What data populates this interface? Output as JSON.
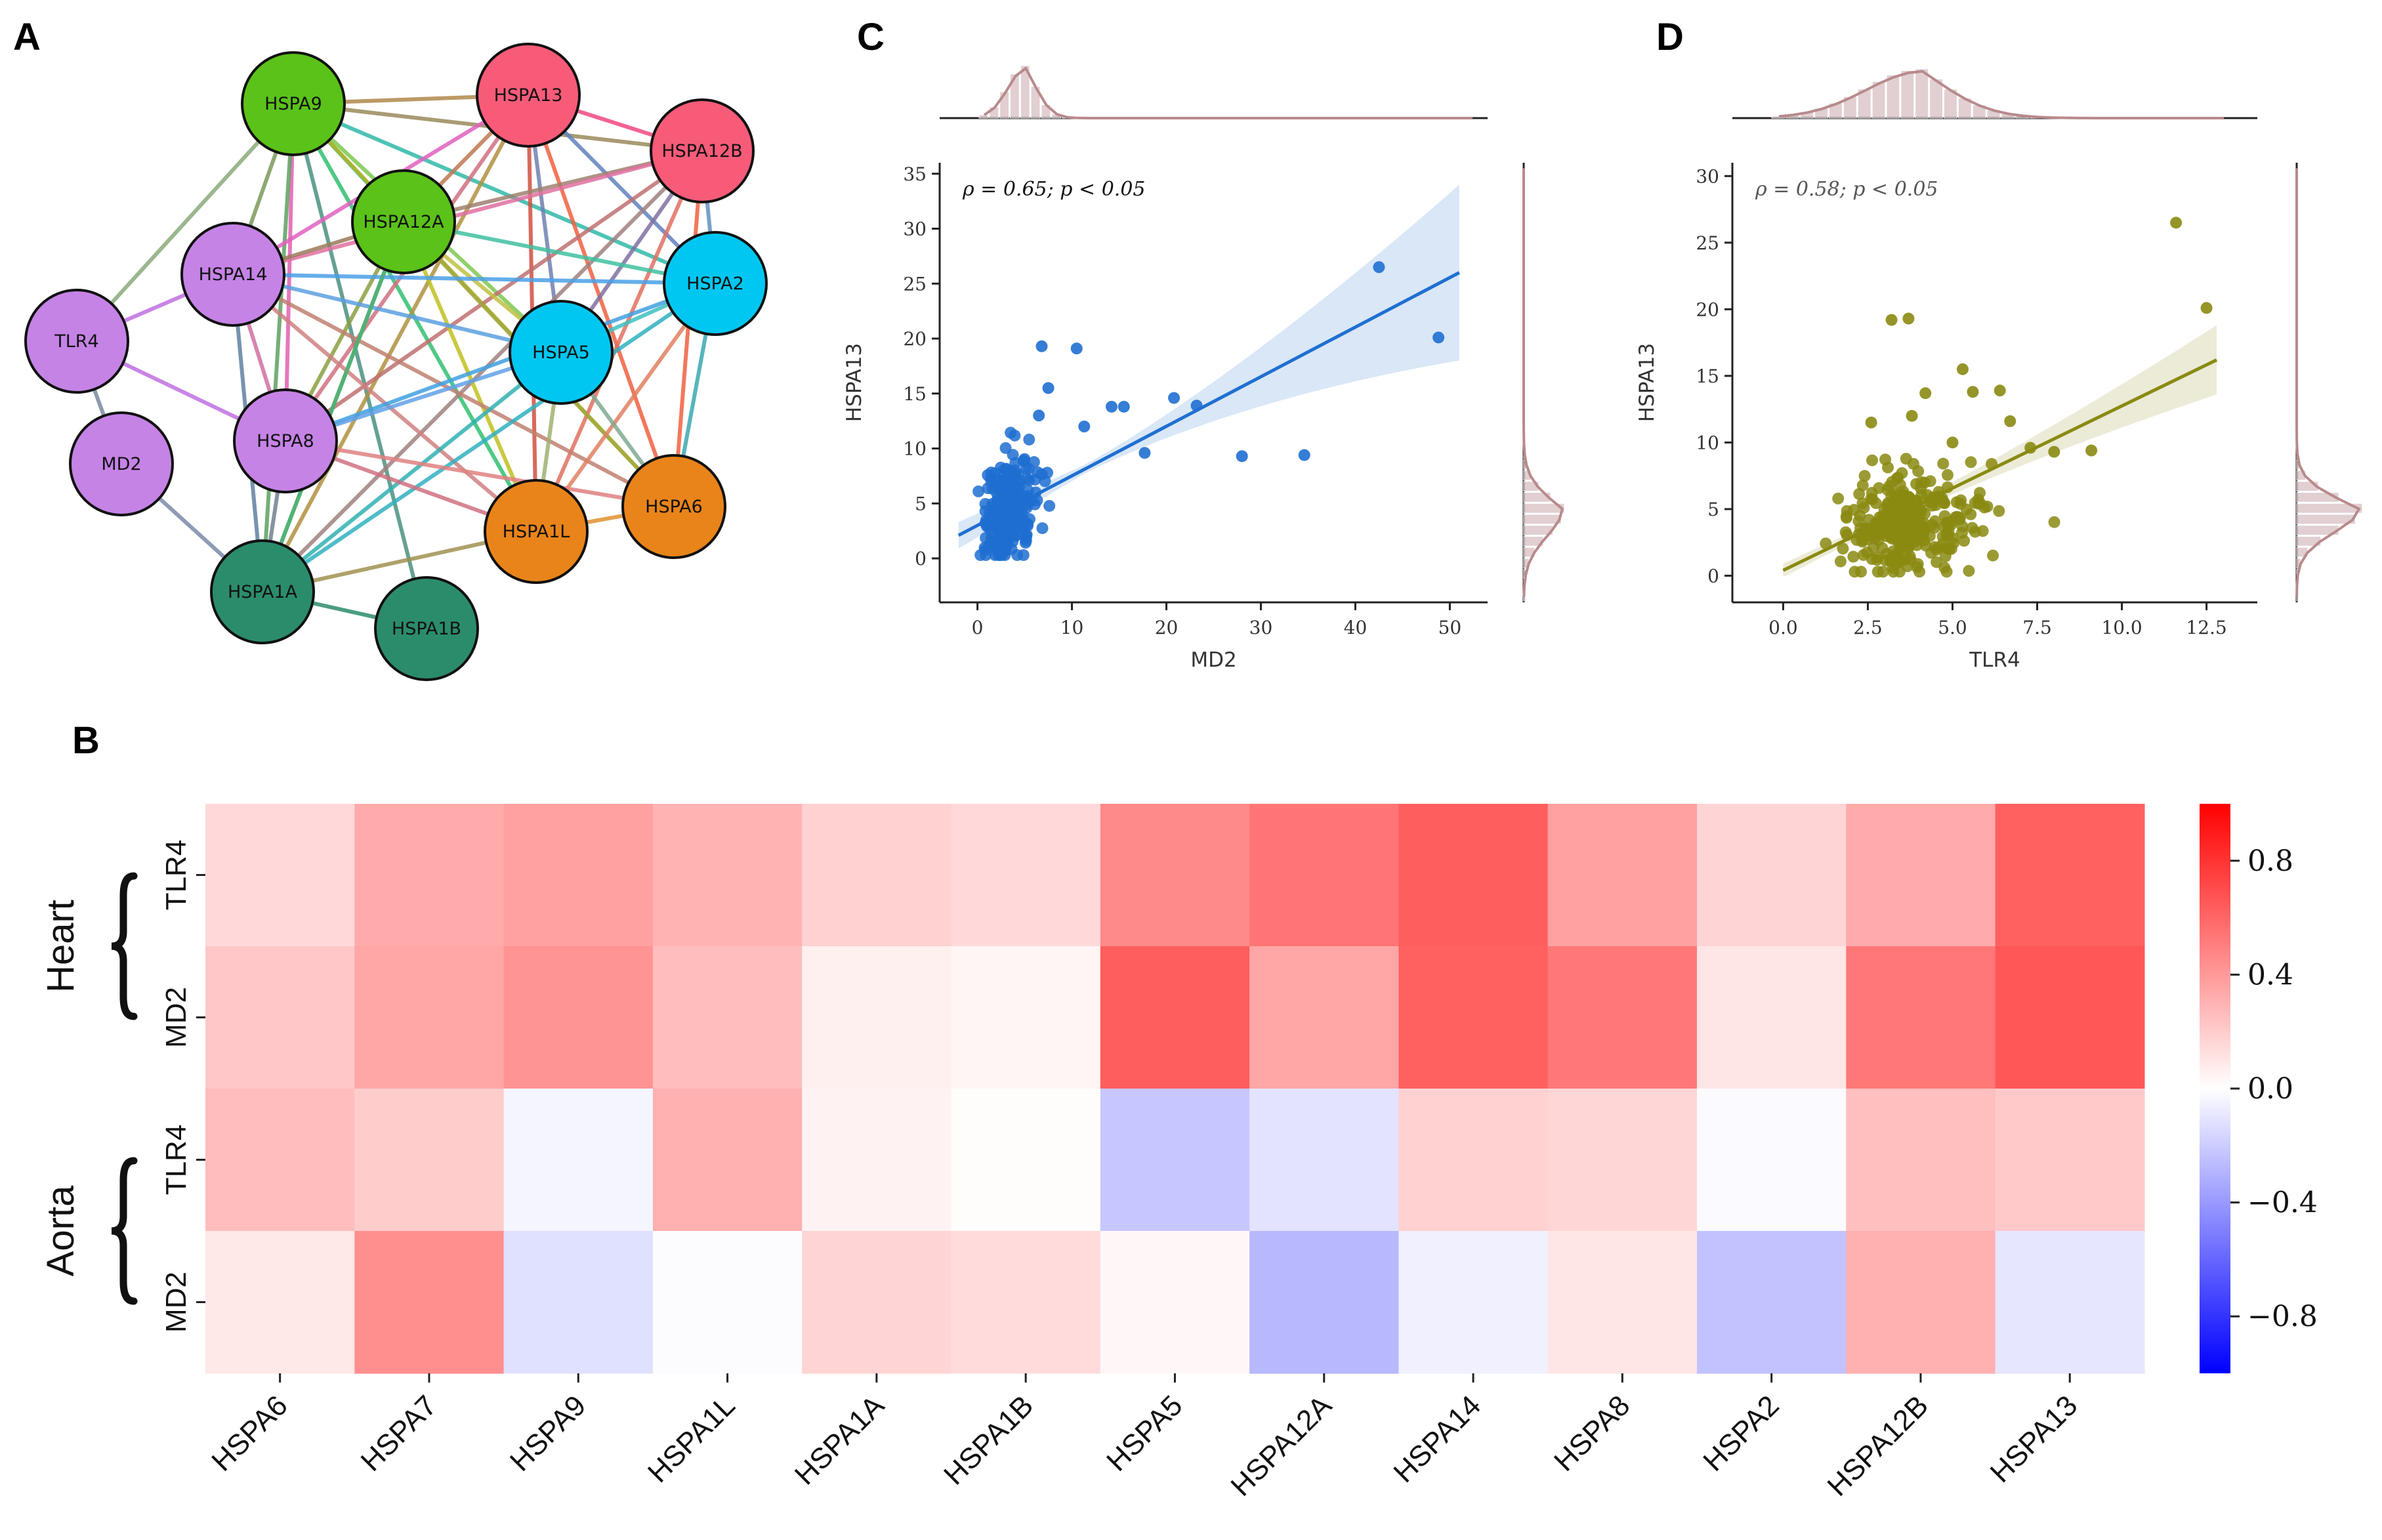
{
  "panels": {
    "a": "A",
    "b": "B",
    "c": "C",
    "d": "D"
  },
  "chart_data": [
    {
      "type": "network",
      "panel": "A",
      "nodes": [
        {
          "id": "HSPA9",
          "label": "HSPA9",
          "color": "#5bc219"
        },
        {
          "id": "HSPA13",
          "label": "HSPA13",
          "color": "#f75b78"
        },
        {
          "id": "HSPA12B",
          "label": "HSPA12B",
          "color": "#f75b78"
        },
        {
          "id": "HSPA12A",
          "label": "HSPA12A",
          "color": "#5bc219"
        },
        {
          "id": "HSPA14",
          "label": "HSPA14",
          "color": "#c583e6"
        },
        {
          "id": "HSPA2",
          "label": "HSPA2",
          "color": "#00c7f2"
        },
        {
          "id": "TLR4",
          "label": "TLR4",
          "color": "#c583e6"
        },
        {
          "id": "HSPA5",
          "label": "HSPA5",
          "color": "#00c7f2"
        },
        {
          "id": "MD2",
          "label": "MD2",
          "color": "#c583e6"
        },
        {
          "id": "HSPA8",
          "label": "HSPA8",
          "color": "#c583e6"
        },
        {
          "id": "HSPA6",
          "label": "HSPA6",
          "color": "#e9841a"
        },
        {
          "id": "HSPA1L",
          "label": "HSPA1L",
          "color": "#e9841a"
        },
        {
          "id": "HSPA1A",
          "label": "HSPA1A",
          "color": "#2b8c6c"
        },
        {
          "id": "HSPA1B",
          "label": "HSPA1B",
          "color": "#2b8c6c"
        }
      ],
      "edges": [
        [
          "HSPA9",
          "HSPA13",
          "#b0884a"
        ],
        [
          "HSPA9",
          "HSPA12B",
          "#9a8a5a"
        ],
        [
          "HSPA9",
          "HSPA12A",
          "#2ec49a"
        ],
        [
          "HSPA9",
          "HSPA2",
          "#2fb8a8"
        ],
        [
          "HSPA9",
          "HSPA5",
          "#7ec850"
        ],
        [
          "HSPA9",
          "HSPA8",
          "#e060b0"
        ],
        [
          "HSPA9",
          "HSPA6",
          "#b4b020"
        ],
        [
          "HSPA9",
          "HSPA1L",
          "#30c070"
        ],
        [
          "HSPA9",
          "HSPA1A",
          "#5ea060"
        ],
        [
          "HSPA9",
          "HSPA14",
          "#7a9a5a"
        ],
        [
          "HSPA9",
          "TLR4",
          "#8aaa7a"
        ],
        [
          "HSPA9",
          "HSPA1B",
          "#4a9080"
        ],
        [
          "HSPA13",
          "HSPA12B",
          "#f04880"
        ],
        [
          "HSPA13",
          "HSPA12A",
          "#c07850"
        ],
        [
          "HSPA13",
          "HSPA14",
          "#e060c0"
        ],
        [
          "HSPA13",
          "HSPA2",
          "#6080c0"
        ],
        [
          "HSPA13",
          "HSPA5",
          "#7080b0"
        ],
        [
          "HSPA13",
          "HSPA8",
          "#d07080"
        ],
        [
          "HSPA13",
          "HSPA6",
          "#f06040"
        ],
        [
          "HSPA13",
          "HSPA1L",
          "#d05040"
        ],
        [
          "HSPA13",
          "HSPA1A",
          "#b09040"
        ],
        [
          "HSPA12B",
          "HSPA12A",
          "#a08070"
        ],
        [
          "HSPA12B",
          "HSPA14",
          "#e070a0"
        ],
        [
          "HSPA12B",
          "HSPA2",
          "#6090c0"
        ],
        [
          "HSPA12B",
          "HSPA5",
          "#8070a0"
        ],
        [
          "HSPA12B",
          "HSPA8",
          "#c07070"
        ],
        [
          "HSPA12B",
          "HSPA6",
          "#f06040"
        ],
        [
          "HSPA12B",
          "HSPA1L",
          "#e07060"
        ],
        [
          "HSPA12B",
          "HSPA1A",
          "#a08080"
        ],
        [
          "HSPA12A",
          "HSPA14",
          "#9a7a5a"
        ],
        [
          "HSPA12A",
          "HSPA2",
          "#40c0a0"
        ],
        [
          "HSPA12A",
          "HSPA5",
          "#c0c040"
        ],
        [
          "HSPA12A",
          "HSPA8",
          "#8aa040"
        ],
        [
          "HSPA12A",
          "HSPA6",
          "#a0a840"
        ],
        [
          "HSPA12A",
          "HSPA1L",
          "#c0c020"
        ],
        [
          "HSPA12A",
          "HSPA1A",
          "#40b080"
        ],
        [
          "HSPA14",
          "HSPA2",
          "#4aa0e8"
        ],
        [
          "HSPA14",
          "HSPA5",
          "#5aa0e0"
        ],
        [
          "HSPA14",
          "HSPA8",
          "#d070a0"
        ],
        [
          "HSPA14",
          "TLR4",
          "#c070e0"
        ],
        [
          "HSPA14",
          "HSPA6",
          "#c08070"
        ],
        [
          "HSPA14",
          "HSPA1L",
          "#d08080"
        ],
        [
          "HSPA14",
          "HSPA1A",
          "#6080a0"
        ],
        [
          "HSPA2",
          "HSPA5",
          "#40c0c0"
        ],
        [
          "HSPA2",
          "HSPA8",
          "#40a0e0"
        ],
        [
          "HSPA2",
          "HSPA6",
          "#3aa8b0"
        ],
        [
          "HSPA2",
          "HSPA1L",
          "#e08060"
        ],
        [
          "HSPA2",
          "HSPA1A",
          "#30b0c0"
        ],
        [
          "HSPA5",
          "HSPA8",
          "#60a0e8"
        ],
        [
          "HSPA5",
          "HSPA6",
          "#80a890"
        ],
        [
          "HSPA5",
          "HSPA1L",
          "#a0b070"
        ],
        [
          "HSPA5",
          "HSPA1A",
          "#30b0b0"
        ],
        [
          "TLR4",
          "HSPA8",
          "#c070e0"
        ],
        [
          "TLR4",
          "MD2",
          "#7a8aa0"
        ],
        [
          "MD2",
          "HSPA1A",
          "#7a8aa8"
        ],
        [
          "HSPA8",
          "HSPA6",
          "#e08080"
        ],
        [
          "HSPA8",
          "HSPA1L",
          "#d07080"
        ],
        [
          "HSPA8",
          "HSPA1A",
          "#708090"
        ],
        [
          "HSPA6",
          "HSPA1L",
          "#e09030"
        ],
        [
          "HSPA1L",
          "HSPA1A",
          "#a09050"
        ],
        [
          "HSPA1A",
          "HSPA1B",
          "#2b8c6c"
        ],
        [
          "HSPA1A",
          "HSPA12A",
          "#50b070"
        ]
      ]
    },
    {
      "type": "scatter",
      "panel": "C",
      "color": "#1f6fd1",
      "xlabel": "MD2",
      "ylabel": "HSPA13",
      "annotation": "ρ = 0.65; p < 0.05",
      "xlim": [
        -4,
        54
      ],
      "ylim": [
        -4,
        36
      ],
      "xticks": [
        0,
        10,
        20,
        30,
        40,
        50
      ],
      "yticks": [
        0,
        5,
        10,
        15,
        20,
        25,
        30,
        35
      ],
      "regression": {
        "x0": -2,
        "y0": 2.1,
        "x1": 51,
        "y1": 26.0
      },
      "ci_half_width": {
        "left": 1.2,
        "center": 0.4,
        "right": 8.0
      },
      "highlight_points": [
        [
          42.5,
          26.5
        ],
        [
          48.8,
          20.1
        ],
        [
          6.8,
          19.3
        ],
        [
          10.5,
          19.1
        ],
        [
          20.8,
          14.6
        ],
        [
          23.2,
          13.9
        ],
        [
          14.2,
          13.8
        ],
        [
          15.5,
          13.8
        ],
        [
          11.3,
          12.0
        ],
        [
          17.7,
          9.6
        ],
        [
          28.0,
          9.3
        ],
        [
          34.6,
          9.4
        ],
        [
          7.5,
          15.5
        ],
        [
          6.5,
          13.0
        ]
      ],
      "cluster": {
        "n": 260,
        "x_center": 2.4,
        "x_spread": 1.8,
        "y_center": 4.2,
        "y_spread": 2.3
      },
      "marginal_x": "histogram of MD2 with KDE, peak near 2",
      "marginal_y": "histogram of HSPA13 with KDE, peak near 4"
    },
    {
      "type": "scatter",
      "panel": "D",
      "color": "#8a8a12",
      "xlabel": "TLR4",
      "ylabel": "HSPA13",
      "annotation": "ρ = 0.58; p < 0.05",
      "xlim": [
        -1.5,
        14
      ],
      "ylim": [
        -2,
        31
      ],
      "xtick_labels": [
        "0.0",
        "2.5",
        "5.0",
        "7.5",
        "10.0",
        "12.5"
      ],
      "xtick_values": [
        0,
        2.5,
        5,
        7.5,
        10,
        12.5
      ],
      "yticks": [
        0,
        5,
        10,
        15,
        20,
        25,
        30
      ],
      "regression": {
        "x0": 0,
        "y0": 0.4,
        "x1": 12.8,
        "y1": 16.2
      },
      "ci_half_width": {
        "left": 0.5,
        "center": 0.3,
        "right": 2.6
      },
      "highlight_points": [
        [
          11.6,
          26.5
        ],
        [
          12.5,
          20.1
        ],
        [
          3.2,
          19.2
        ],
        [
          3.7,
          19.3
        ],
        [
          5.3,
          15.5
        ],
        [
          4.2,
          13.7
        ],
        [
          5.6,
          13.8
        ],
        [
          6.4,
          13.9
        ],
        [
          3.8,
          12.0
        ],
        [
          2.6,
          11.5
        ],
        [
          7.3,
          9.6
        ],
        [
          8.0,
          9.3
        ],
        [
          9.1,
          9.4
        ],
        [
          5.0,
          10.0
        ],
        [
          6.7,
          11.6
        ]
      ],
      "cluster": {
        "n": 300,
        "x_center": 3.1,
        "x_spread": 1.3,
        "y_center": 3.9,
        "y_spread": 2.0
      },
      "marginal_x": "histogram of TLR4 with KDE, peak near 3",
      "marginal_y": "histogram of HSPA13 with KDE, peak near 4"
    },
    {
      "type": "heatmap",
      "panel": "B",
      "columns": [
        "HSPA6",
        "HSPA7",
        "HSPA9",
        "HSPA1L",
        "HSPA1A",
        "HSPA1B",
        "HSPA5",
        "HSPA12A",
        "HSPA14",
        "HSPA8",
        "HSPA2",
        "HSPA12B",
        "HSPA13"
      ],
      "rows": [
        "TLR4",
        "MD2",
        "TLR4",
        "MD2"
      ],
      "groups": [
        {
          "label": "Heart",
          "rows": [
            0,
            1
          ]
        },
        {
          "label": "Aorta",
          "rows": [
            2,
            3
          ]
        }
      ],
      "values": [
        [
          0.15,
          0.33,
          0.37,
          0.3,
          0.18,
          0.15,
          0.46,
          0.54,
          0.63,
          0.37,
          0.17,
          0.33,
          0.62
        ],
        [
          0.22,
          0.35,
          0.42,
          0.26,
          0.06,
          0.04,
          0.63,
          0.35,
          0.62,
          0.53,
          0.1,
          0.53,
          0.66
        ],
        [
          0.26,
          0.2,
          -0.04,
          0.31,
          0.05,
          0.01,
          -0.22,
          -0.11,
          0.18,
          0.16,
          -0.02,
          0.25,
          0.21
        ],
        [
          0.09,
          0.44,
          -0.12,
          -0.01,
          0.17,
          0.14,
          0.03,
          -0.28,
          -0.06,
          0.1,
          -0.24,
          0.31,
          -0.1
        ]
      ],
      "colormap": "bwr",
      "vmin": -1,
      "vmax": 1,
      "colorbar_ticks": [
        0.8,
        0.4,
        0.0,
        -0.4,
        -0.8
      ],
      "colorbar_labels": [
        "0.8",
        "0.4",
        "0.0",
        "−0.4",
        "−0.8"
      ]
    }
  ]
}
